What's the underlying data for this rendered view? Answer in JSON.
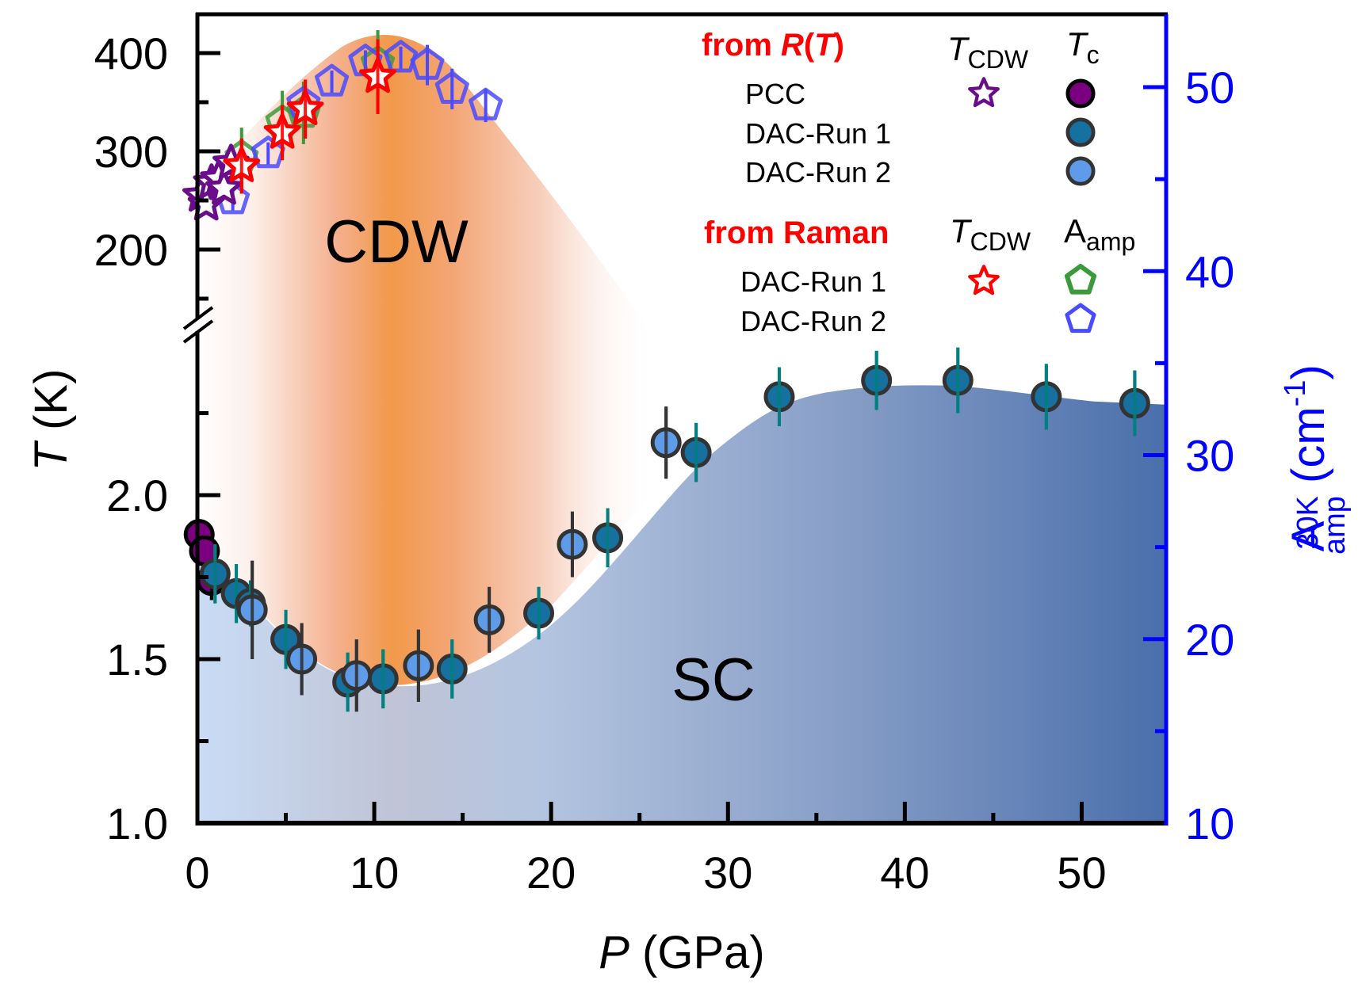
{
  "chart_data": {
    "type": "scatter",
    "title": "",
    "xlabel": {
      "italic": "P",
      "rest": " (GPa)"
    },
    "ylabel_left": {
      "italic": "T",
      "rest": " (K)"
    },
    "ylabel_right": {
      "main": "A",
      "sup": "30K",
      "sub": "amp",
      "unit": " (cm",
      "unit_sup": "-1",
      "close": ")"
    },
    "xlim": [
      0,
      55
    ],
    "x_ticks": [
      0,
      10,
      20,
      30,
      40,
      50
    ],
    "x_tick_labels": [
      "0",
      "10",
      "20",
      "30",
      "40",
      "50"
    ],
    "x_minor_ticks": [
      5,
      15,
      25,
      35,
      45
    ],
    "y_upper": {
      "range": [
        140,
        445
      ],
      "ticks": [
        200,
        300,
        400
      ],
      "tick_labels": [
        "200",
        "300",
        "400"
      ],
      "minor_ticks": [
        150,
        250,
        350
      ]
    },
    "y_lower": {
      "range": [
        1.0,
        2.45
      ],
      "ticks": [
        1.0,
        1.5,
        2.0
      ],
      "tick_labels": [
        "1.0",
        "1.5",
        "2.0"
      ],
      "minor_ticks": [
        1.25,
        1.75,
        2.25
      ]
    },
    "axis_break": true,
    "y_right": {
      "range": [
        10,
        54
      ],
      "ticks": [
        10,
        20,
        30,
        40,
        50
      ],
      "tick_labels": [
        "10",
        "20",
        "30",
        "40",
        "50"
      ],
      "minor_ticks": [
        15,
        25,
        35,
        45
      ],
      "color": "#0000ff"
    },
    "regions": [
      {
        "name": "CDW",
        "label": "CDW",
        "color": "#f2994a"
      },
      {
        "name": "SC",
        "label": "SC",
        "color_start": "#c9dcf5",
        "color_end": "#4a6fab"
      }
    ],
    "series": [
      {
        "name": "PCC T_CDW from R(T)",
        "marker": "star",
        "axis": "upper",
        "stroke": "#6a0d8a",
        "fill": "#ffffff",
        "points": [
          [
            0.2,
            255
          ],
          [
            0.5,
            246
          ],
          [
            0.8,
            268
          ],
          [
            1.2,
            272
          ],
          [
            1.5,
            262
          ],
          [
            1.9,
            288
          ]
        ]
      },
      {
        "name": "DAC-Run 1 T_CDW from Raman",
        "marker": "star",
        "axis": "upper",
        "stroke": "#ff0000",
        "fill": "#ffffff",
        "points": [
          [
            2.5,
            285,
            28
          ],
          [
            4.8,
            319,
            28
          ],
          [
            6.1,
            343,
            30
          ],
          [
            10.2,
            376,
            38
          ]
        ]
      },
      {
        "name": "DAC-Run 1 A_amp",
        "marker": "pentagon",
        "axis": "right",
        "stroke": "#3d9a3a",
        "fill": "none",
        "points": [
          [
            2.5,
            46.2,
            1.6
          ],
          [
            4.8,
            48.1,
            1.7
          ],
          [
            6.0,
            48.6,
            1.7
          ],
          [
            10.2,
            51.3,
            1.8
          ]
        ]
      },
      {
        "name": "DAC-Run 2 A_amp",
        "marker": "pentagon",
        "axis": "right",
        "stroke": "#4a4aff",
        "fill": "none",
        "points": [
          [
            2.0,
            43.9,
            0.6
          ],
          [
            4.0,
            46.4,
            0.6
          ],
          [
            6.0,
            49.1,
            0.6
          ],
          [
            7.6,
            50.3,
            0.6
          ],
          [
            9.5,
            51.4,
            0.6
          ],
          [
            11.5,
            51.6,
            0.6
          ],
          [
            13.0,
            51.2,
            1.1
          ],
          [
            14.4,
            49.9,
            1.1
          ],
          [
            16.3,
            49.0,
            0.9
          ]
        ]
      },
      {
        "name": "PCC Tc",
        "marker": "circle",
        "axis": "lower",
        "stroke": "#000000",
        "fill": "#7a0080",
        "points": [
          [
            0.1,
            1.88,
            0.0
          ],
          [
            0.4,
            1.83,
            0.0
          ],
          [
            0.8,
            1.74,
            0.06
          ]
        ]
      },
      {
        "name": "DAC-Run 1 Tc",
        "marker": "circle",
        "axis": "lower",
        "stroke": "#333333",
        "fill": "#1670a0",
        "err_color": "#008080",
        "points": [
          [
            1.0,
            1.76,
            0.09
          ],
          [
            2.2,
            1.7,
            0.09
          ],
          [
            3.0,
            1.67,
            0.07
          ],
          [
            5.0,
            1.56,
            0.09
          ],
          [
            8.5,
            1.43,
            0.09
          ],
          [
            10.5,
            1.44,
            0.09
          ],
          [
            14.4,
            1.47,
            0.09
          ],
          [
            19.3,
            1.64,
            0.08
          ],
          [
            23.2,
            1.87,
            0.09
          ],
          [
            28.2,
            2.13,
            0.09
          ],
          [
            32.9,
            2.3,
            0.09
          ],
          [
            38.4,
            2.35,
            0.09
          ],
          [
            43.0,
            2.35,
            0.1
          ],
          [
            48.0,
            2.3,
            0.1
          ],
          [
            53.0,
            2.28,
            0.1
          ]
        ]
      },
      {
        "name": "DAC-Run 2 Tc",
        "marker": "circle",
        "axis": "lower",
        "stroke": "#333333",
        "fill": "#5e9be8",
        "err_color": "#333333",
        "points": [
          [
            3.1,
            1.65,
            0.15
          ],
          [
            5.9,
            1.5,
            0.11
          ],
          [
            9.0,
            1.45,
            0.11
          ],
          [
            12.5,
            1.48,
            0.11
          ],
          [
            16.5,
            1.62,
            0.1
          ],
          [
            21.2,
            1.85,
            0.1
          ],
          [
            26.5,
            2.16,
            0.11
          ]
        ]
      }
    ],
    "legend": {
      "placement": "top-right",
      "group1_title": {
        "prefix": "from ",
        "italic1": "R",
        "paren_open": "(",
        "italic2": "T",
        "paren_close": ")"
      },
      "group1_rows": [
        "PCC",
        "DAC-Run 1",
        "DAC-Run 2"
      ],
      "group2_title": "from Raman",
      "group2_rows": [
        "DAC-Run 1",
        "DAC-Run 2"
      ],
      "col_tcdw": {
        "main": "T",
        "sub": "CDW"
      },
      "col_tc": {
        "main": "T",
        "sub": "c"
      },
      "col_aamp": {
        "main": "A",
        "sub": "amp"
      }
    }
  }
}
